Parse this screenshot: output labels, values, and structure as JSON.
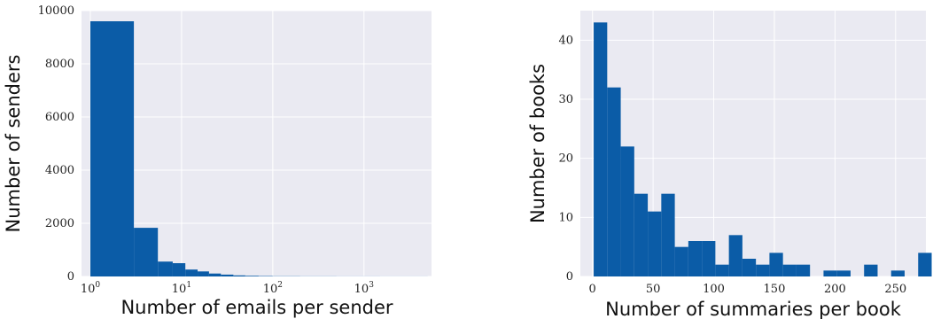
{
  "colors": {
    "bar": "#0b5ca7",
    "plot_background": "#eaeaf2",
    "grid": "#ffffff"
  },
  "chart_data": [
    {
      "type": "bar",
      "xscale": "log",
      "xlabel": "Number of emails per sender",
      "ylabel": "Number of senders",
      "xlim": [
        0.8,
        5500
      ],
      "ylim": [
        0,
        10000
      ],
      "grid": true,
      "x_ticks": [
        {
          "base": "10",
          "exp": "0",
          "value": 1
        },
        {
          "base": "10",
          "exp": "1",
          "value": 10
        },
        {
          "base": "10",
          "exp": "2",
          "value": 100
        },
        {
          "base": "10",
          "exp": "3",
          "value": 1000
        }
      ],
      "y_ticks": [
        "0",
        "2000",
        "4000",
        "6000",
        "8000",
        "10000"
      ],
      "bins": [
        {
          "x0": 1,
          "x1": 3,
          "value": 9600
        },
        {
          "x0": 3,
          "x1": 5.5,
          "value": 1830
        },
        {
          "x0": 5.5,
          "x1": 8,
          "value": 560
        },
        {
          "x0": 8,
          "x1": 11,
          "value": 500
        },
        {
          "x0": 11,
          "x1": 15,
          "value": 260
        },
        {
          "x0": 15,
          "x1": 20,
          "value": 190
        },
        {
          "x0": 20,
          "x1": 27,
          "value": 110
        },
        {
          "x0": 27,
          "x1": 37,
          "value": 70
        },
        {
          "x0": 37,
          "x1": 50,
          "value": 40
        },
        {
          "x0": 50,
          "x1": 70,
          "value": 25
        },
        {
          "x0": 70,
          "x1": 100,
          "value": 15
        },
        {
          "x0": 100,
          "x1": 200,
          "value": 8
        },
        {
          "x0": 200,
          "x1": 500,
          "value": 5
        },
        {
          "x0": 500,
          "x1": 1500,
          "value": 3
        },
        {
          "x0": 1500,
          "x1": 5000,
          "value": 2
        }
      ]
    },
    {
      "type": "bar",
      "xscale": "linear",
      "xlabel": "Number of summaries per book",
      "ylabel": "Number of books",
      "xlim": [
        -10,
        275
      ],
      "ylim": [
        0,
        45
      ],
      "grid": true,
      "x_ticks": [
        "0",
        "50",
        "100",
        "150",
        "200",
        "250"
      ],
      "y_ticks": [
        "0",
        "10",
        "20",
        "30",
        "40"
      ],
      "bin_start": 1,
      "bin_width": 11.15,
      "values": [
        43,
        32,
        22,
        14,
        11,
        14,
        5,
        6,
        6,
        2,
        7,
        3,
        2,
        4,
        2,
        2,
        0,
        1,
        1,
        0,
        2,
        0,
        1,
        0,
        4
      ]
    }
  ]
}
